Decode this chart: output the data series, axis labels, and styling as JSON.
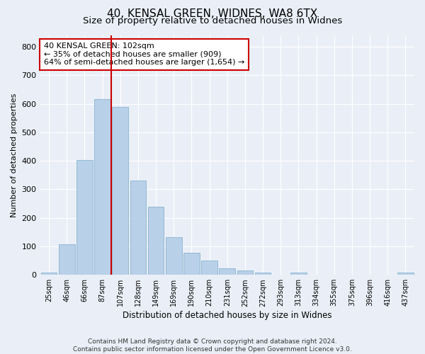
{
  "title": "40, KENSAL GREEN, WIDNES, WA8 6TX",
  "subtitle": "Size of property relative to detached houses in Widnes",
  "xlabel": "Distribution of detached houses by size in Widnes",
  "ylabel": "Number of detached properties",
  "bar_labels": [
    "25sqm",
    "46sqm",
    "66sqm",
    "87sqm",
    "107sqm",
    "128sqm",
    "149sqm",
    "169sqm",
    "190sqm",
    "210sqm",
    "231sqm",
    "252sqm",
    "272sqm",
    "293sqm",
    "313sqm",
    "334sqm",
    "355sqm",
    "375sqm",
    "396sqm",
    "416sqm",
    "437sqm"
  ],
  "bar_values": [
    8,
    107,
    403,
    617,
    590,
    330,
    238,
    133,
    78,
    50,
    22,
    15,
    8,
    0,
    8,
    0,
    0,
    0,
    0,
    0,
    8
  ],
  "bar_color": "#b8d0e8",
  "bar_edge_color": "#7aaacb",
  "vline_x": 3.5,
  "vline_color": "#cc0000",
  "annotation_text": "40 KENSAL GREEN: 102sqm\n← 35% of detached houses are smaller (909)\n64% of semi-detached houses are larger (1,654) →",
  "annotation_box_color": "#cc0000",
  "ylim": [
    0,
    840
  ],
  "yticks": [
    0,
    100,
    200,
    300,
    400,
    500,
    600,
    700,
    800
  ],
  "footer_text": "Contains HM Land Registry data © Crown copyright and database right 2024.\nContains public sector information licensed under the Open Government Licence v3.0.",
  "background_color": "#eaeff7",
  "plot_bg_color": "#eaeff7",
  "grid_color": "#ffffff",
  "title_fontsize": 11,
  "subtitle_fontsize": 9.5,
  "annotation_fontsize": 8,
  "footer_fontsize": 6.5,
  "ylabel_fontsize": 8,
  "xlabel_fontsize": 8.5
}
